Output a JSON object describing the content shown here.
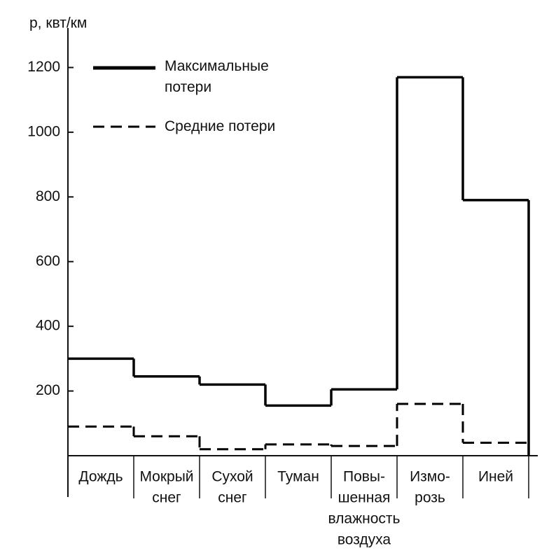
{
  "chart_data": {
    "type": "step",
    "y_label": "р, квт/км",
    "categories": [
      [
        "Дождь"
      ],
      [
        "Мокрый",
        "снег"
      ],
      [
        "Сухой",
        "снег"
      ],
      [
        "Туман"
      ],
      [
        "Повы-",
        "шенная",
        "влажность",
        "воздуха"
      ],
      [
        "Измо-",
        "розь"
      ],
      [
        "Иней"
      ]
    ],
    "series": [
      {
        "name": "Максимальные потери",
        "color": "#000000",
        "dash": false,
        "values": [
          300,
          245,
          220,
          155,
          205,
          1170,
          790
        ]
      },
      {
        "name": "Средние потери",
        "color": "#000000",
        "dash": true,
        "values": [
          90,
          60,
          20,
          35,
          30,
          160,
          40
        ]
      }
    ],
    "ylim": [
      0,
      1320
    ],
    "yticks": [
      200,
      400,
      600,
      800,
      1000,
      1200
    ]
  }
}
